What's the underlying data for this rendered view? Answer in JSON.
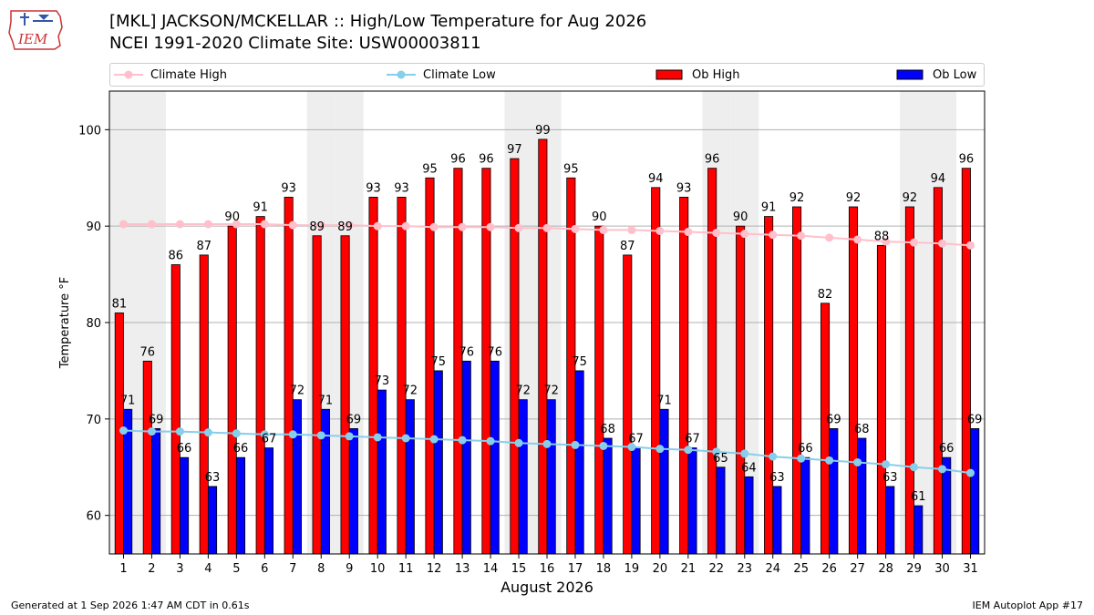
{
  "header": {
    "logo_text": "IEM",
    "title_line1": "[MKL] JACKSON/MCKELLAR :: High/Low Temperature for Aug 2026",
    "title_line2": "NCEI 1991-2020 Climate Site: USW00003811"
  },
  "legend": {
    "climate_high": "Climate High",
    "climate_low": "Climate Low",
    "ob_high": "Ob High",
    "ob_low": "Ob Low"
  },
  "colors": {
    "ob_high": "#ff0000",
    "ob_low": "#0000ff",
    "climate_high": "#ffc0cb",
    "climate_low": "#87ceeb",
    "weekend_shade": "#eeeeee"
  },
  "footer": {
    "left": "Generated at 1 Sep 2026 1:47 AM CDT in 0.61s",
    "right": "IEM Autoplot App #17"
  },
  "chart_data": {
    "type": "bar",
    "xlabel": "August 2026",
    "ylabel": "Temperature °F",
    "ylim": [
      56,
      104
    ],
    "yticks": [
      60,
      70,
      80,
      90,
      100
    ],
    "grid": true,
    "legend_position": "top",
    "categories": [
      "1",
      "2",
      "3",
      "4",
      "5",
      "6",
      "7",
      "8",
      "9",
      "10",
      "11",
      "12",
      "13",
      "14",
      "15",
      "16",
      "17",
      "18",
      "19",
      "20",
      "21",
      "22",
      "23",
      "24",
      "25",
      "26",
      "27",
      "28",
      "29",
      "30",
      "31"
    ],
    "shaded_days": [
      1,
      2,
      8,
      9,
      15,
      16,
      22,
      23,
      29,
      30
    ],
    "series": [
      {
        "name": "Ob High",
        "type": "bar",
        "values": [
          81,
          76,
          86,
          87,
          90,
          91,
          93,
          89,
          89,
          93,
          93,
          95,
          96,
          96,
          97,
          99,
          95,
          90,
          87,
          94,
          93,
          96,
          90,
          91,
          92,
          82,
          92,
          88,
          92,
          94,
          96
        ]
      },
      {
        "name": "Ob Low",
        "type": "bar",
        "values": [
          71,
          69,
          66,
          63,
          66,
          67,
          72,
          71,
          69,
          73,
          72,
          75,
          76,
          76,
          72,
          72,
          75,
          68,
          67,
          71,
          67,
          65,
          64,
          63,
          66,
          69,
          68,
          63,
          61,
          66,
          69
        ]
      },
      {
        "name": "Climate High",
        "type": "line",
        "values": [
          90.2,
          90.2,
          90.2,
          90.2,
          90.2,
          90.2,
          90.1,
          90.1,
          90.1,
          90.0,
          90.0,
          89.9,
          89.9,
          89.9,
          89.8,
          89.8,
          89.7,
          89.6,
          89.6,
          89.5,
          89.4,
          89.3,
          89.2,
          89.1,
          89.0,
          88.8,
          88.6,
          88.4,
          88.3,
          88.2,
          88.0
        ]
      },
      {
        "name": "Climate Low",
        "type": "line",
        "values": [
          68.8,
          68.7,
          68.7,
          68.6,
          68.5,
          68.4,
          68.4,
          68.3,
          68.2,
          68.1,
          68.0,
          67.9,
          67.8,
          67.7,
          67.5,
          67.4,
          67.3,
          67.2,
          67.1,
          66.9,
          66.8,
          66.6,
          66.4,
          66.1,
          65.9,
          65.7,
          65.5,
          65.3,
          65.0,
          64.8,
          64.4
        ]
      }
    ]
  }
}
